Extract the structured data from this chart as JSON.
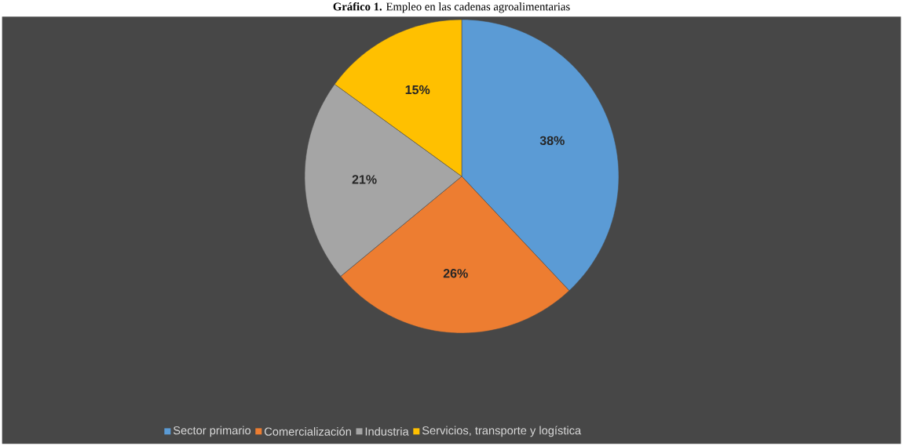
{
  "chart_data": {
    "type": "pie",
    "title": "**Gráfico 1.** Empleo en las cadenas agroalimentarias",
    "categories": [
      "Sector primario",
      "Comercialización",
      "Industria",
      "Servicios, transporte y logística"
    ],
    "values": [
      38,
      26,
      21,
      15
    ],
    "colors": [
      "#5b9bd5",
      "#ed7d31",
      "#a5a5a5",
      "#ffc000"
    ],
    "value_labels": [
      "38%",
      "26%",
      "21%",
      "15%"
    ],
    "legend": "bottom"
  }
}
